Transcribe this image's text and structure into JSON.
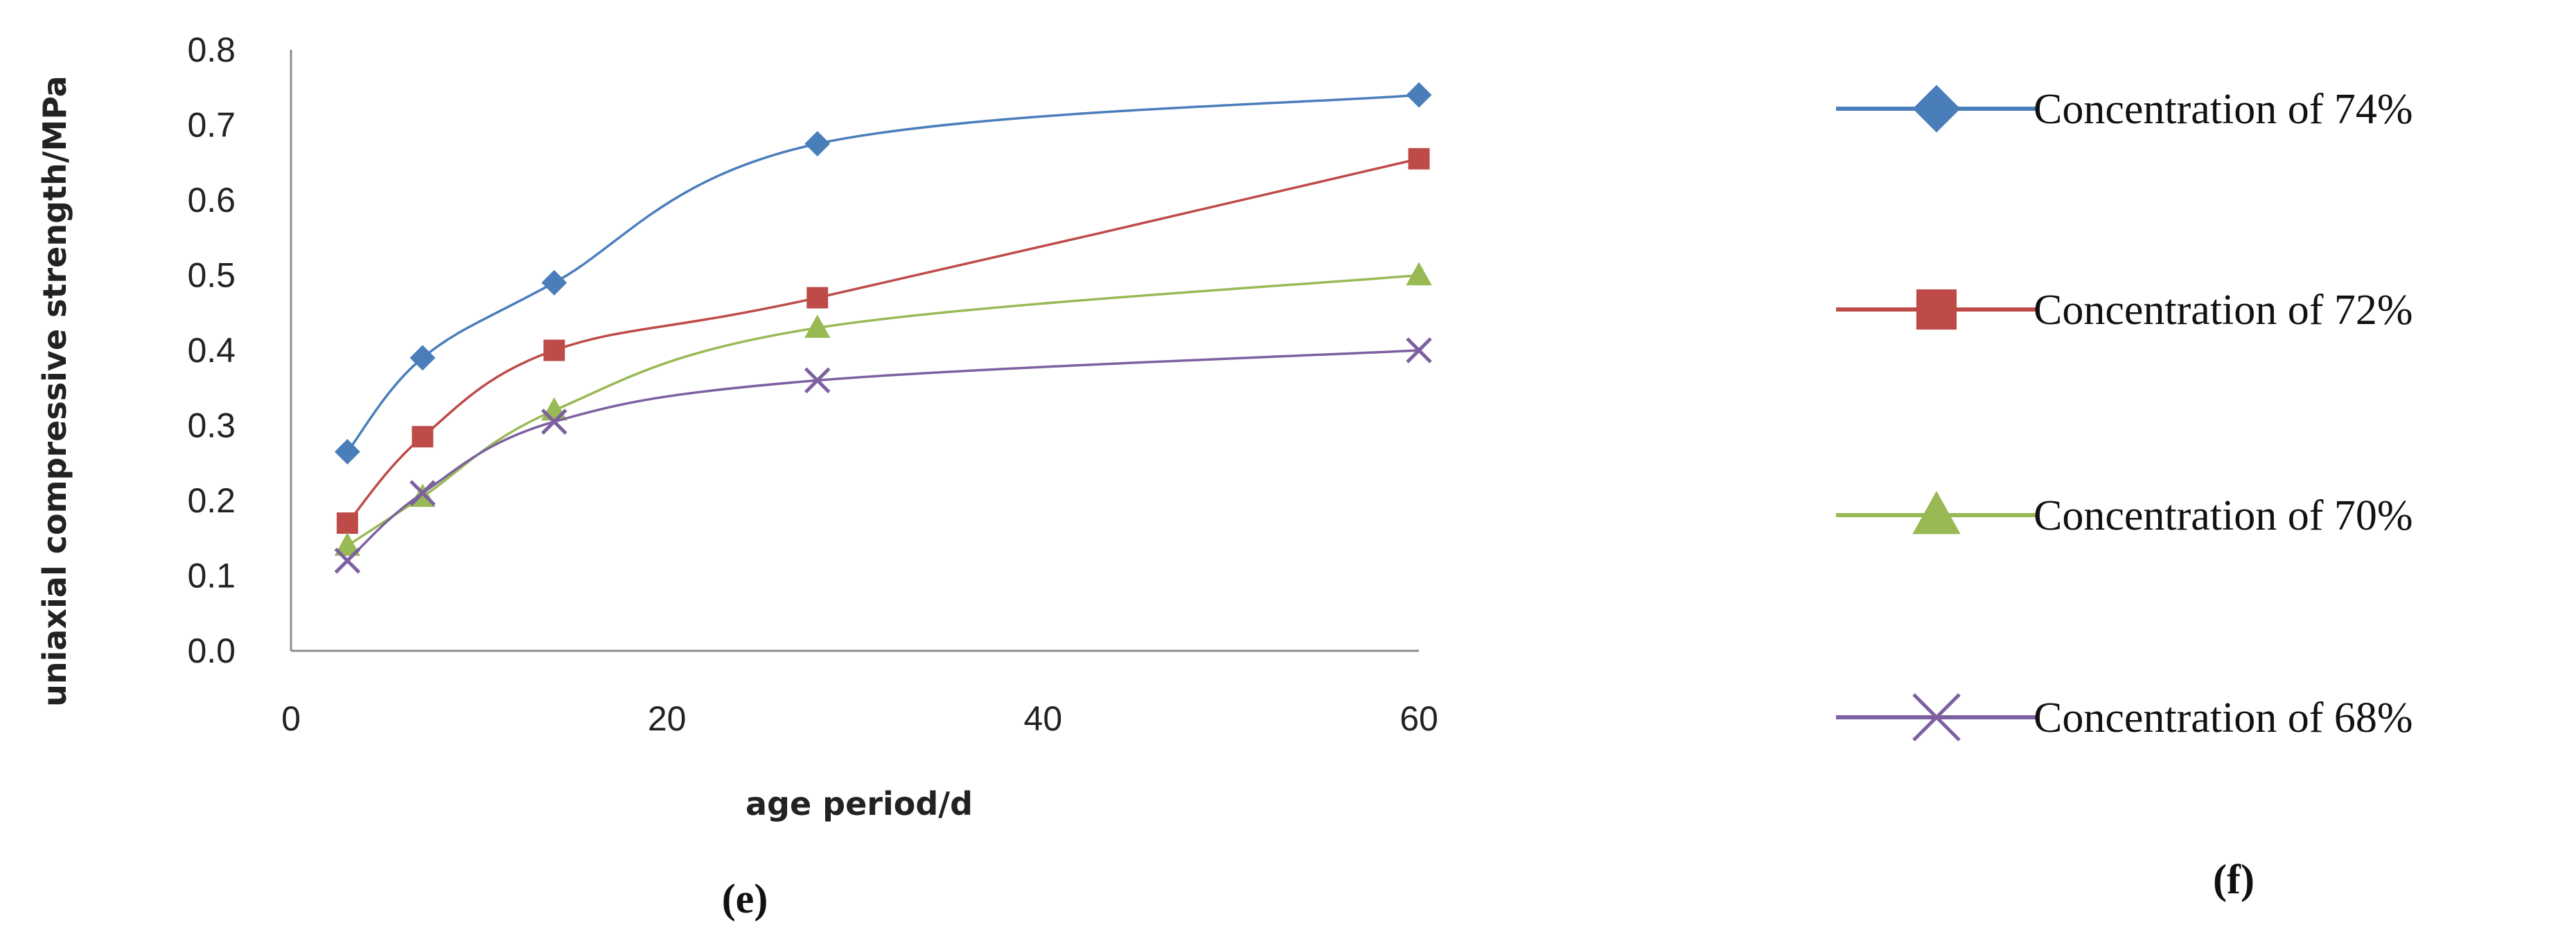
{
  "chart_data": {
    "type": "line",
    "xlabel": "age period/d",
    "ylabel": "uniaxial compressive strength/MPa",
    "xlim": [
      0,
      60
    ],
    "ylim": [
      0.0,
      0.8
    ],
    "xticks": [
      "0",
      "20",
      "40",
      "60"
    ],
    "yticks": [
      "0.0",
      "0.1",
      "0.2",
      "0.3",
      "0.4",
      "0.5",
      "0.6",
      "0.7",
      "0.8"
    ],
    "grid": false,
    "legend_position": "right",
    "series": [
      {
        "name": "Concentration of 74%",
        "color": "#4a7ebb",
        "marker": "diamond",
        "x": [
          3,
          7,
          14,
          28,
          60
        ],
        "y": [
          0.265,
          0.39,
          0.49,
          0.675,
          0.74
        ]
      },
      {
        "name": "Concentration of 72%",
        "color": "#be4b48",
        "marker": "square",
        "x": [
          3,
          7,
          14,
          28,
          60
        ],
        "y": [
          0.17,
          0.285,
          0.4,
          0.47,
          0.655
        ]
      },
      {
        "name": "Concentration of 70%",
        "color": "#98b954",
        "marker": "triangle",
        "x": [
          3,
          7,
          14,
          28,
          60
        ],
        "y": [
          0.14,
          0.205,
          0.32,
          0.43,
          0.5
        ]
      },
      {
        "name": "Concentration of 68%",
        "color": "#7d60a0",
        "marker": "x",
        "x": [
          3,
          7,
          14,
          28,
          60
        ],
        "y": [
          0.12,
          0.21,
          0.305,
          0.36,
          0.4
        ]
      }
    ]
  },
  "labels": {
    "panel_e": "(e)",
    "panel_f": "(f)"
  }
}
